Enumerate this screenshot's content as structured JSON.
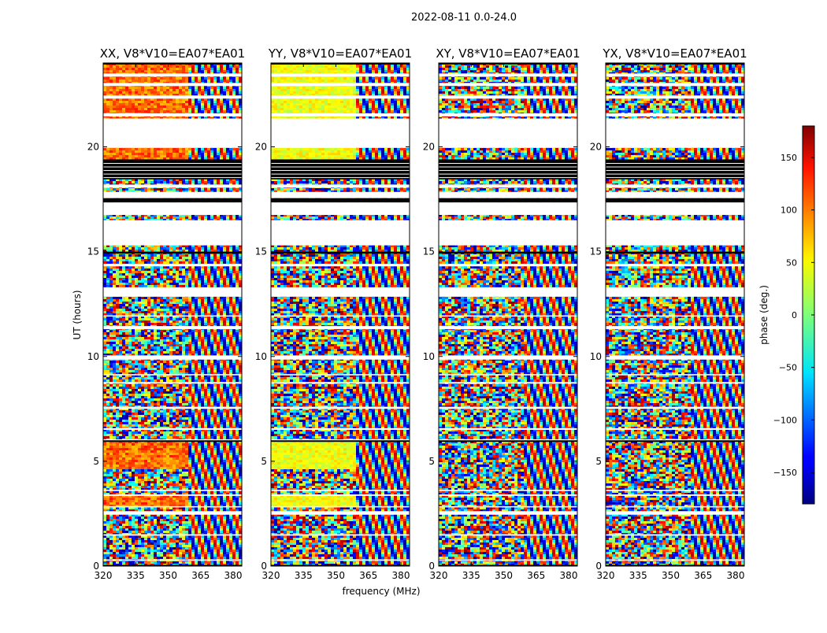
{
  "figure": {
    "suptitle": "2022-08-11 0.0-24.0",
    "xlabel": "frequency (MHz)",
    "ylabel": "UT (hours)"
  },
  "chart_data": {
    "type": "heatmap",
    "xlim": [
      320,
      384
    ],
    "ylim": [
      0,
      24
    ],
    "xticks": [
      320,
      335,
      350,
      365,
      380
    ],
    "yticks": [
      0,
      5,
      10,
      15,
      20
    ],
    "panels": [
      {
        "title": "XX, V8*V10=EA07*EA01",
        "style": "warm-low-band"
      },
      {
        "title": "YY, V8*V10=EA07*EA01",
        "style": "yellow-low-band"
      },
      {
        "title": "XY, V8*V10=EA07*EA01",
        "style": "noise"
      },
      {
        "title": "YX, V8*V10=EA07*EA01",
        "style": "noise"
      }
    ],
    "flagged_ut_ranges": [
      [
        0.25,
        0.32
      ],
      [
        1.45,
        1.52
      ],
      [
        2.45,
        2.62
      ],
      [
        2.8,
        2.86
      ],
      [
        3.35,
        3.42
      ],
      [
        3.58,
        3.64
      ],
      [
        5.95,
        6.05
      ],
      [
        6.5,
        6.58
      ],
      [
        7.5,
        7.6
      ],
      [
        8.7,
        8.78
      ],
      [
        9.1,
        9.16
      ],
      [
        9.85,
        10.05
      ],
      [
        11.3,
        11.45
      ],
      [
        11.9,
        11.96
      ],
      [
        12.85,
        13.3
      ],
      [
        14.3,
        14.42
      ],
      [
        15.3,
        16.5
      ],
      [
        16.75,
        17.35
      ],
      [
        17.55,
        17.85
      ],
      [
        18.05,
        18.2
      ],
      [
        19.95,
        21.35
      ],
      [
        21.45,
        21.6
      ],
      [
        22.3,
        22.45
      ],
      [
        22.9,
        23.05
      ],
      [
        23.35,
        23.5
      ]
    ],
    "black_ut_ranges": [
      [
        0.0,
        0.06
      ],
      [
        5.95,
        6.0
      ],
      [
        14.9,
        15.0
      ],
      [
        17.35,
        17.55
      ],
      [
        18.45,
        19.4
      ],
      [
        23.95,
        24.0
      ]
    ],
    "colorbar": {
      "label": "phase (deg.)",
      "range": [
        -180,
        180
      ],
      "ticks": [
        150,
        100,
        50,
        0,
        -50,
        -100,
        -150
      ],
      "tick_labels": [
        "150",
        "100",
        "50",
        "0",
        "−50",
        "−100",
        "−150"
      ]
    }
  }
}
